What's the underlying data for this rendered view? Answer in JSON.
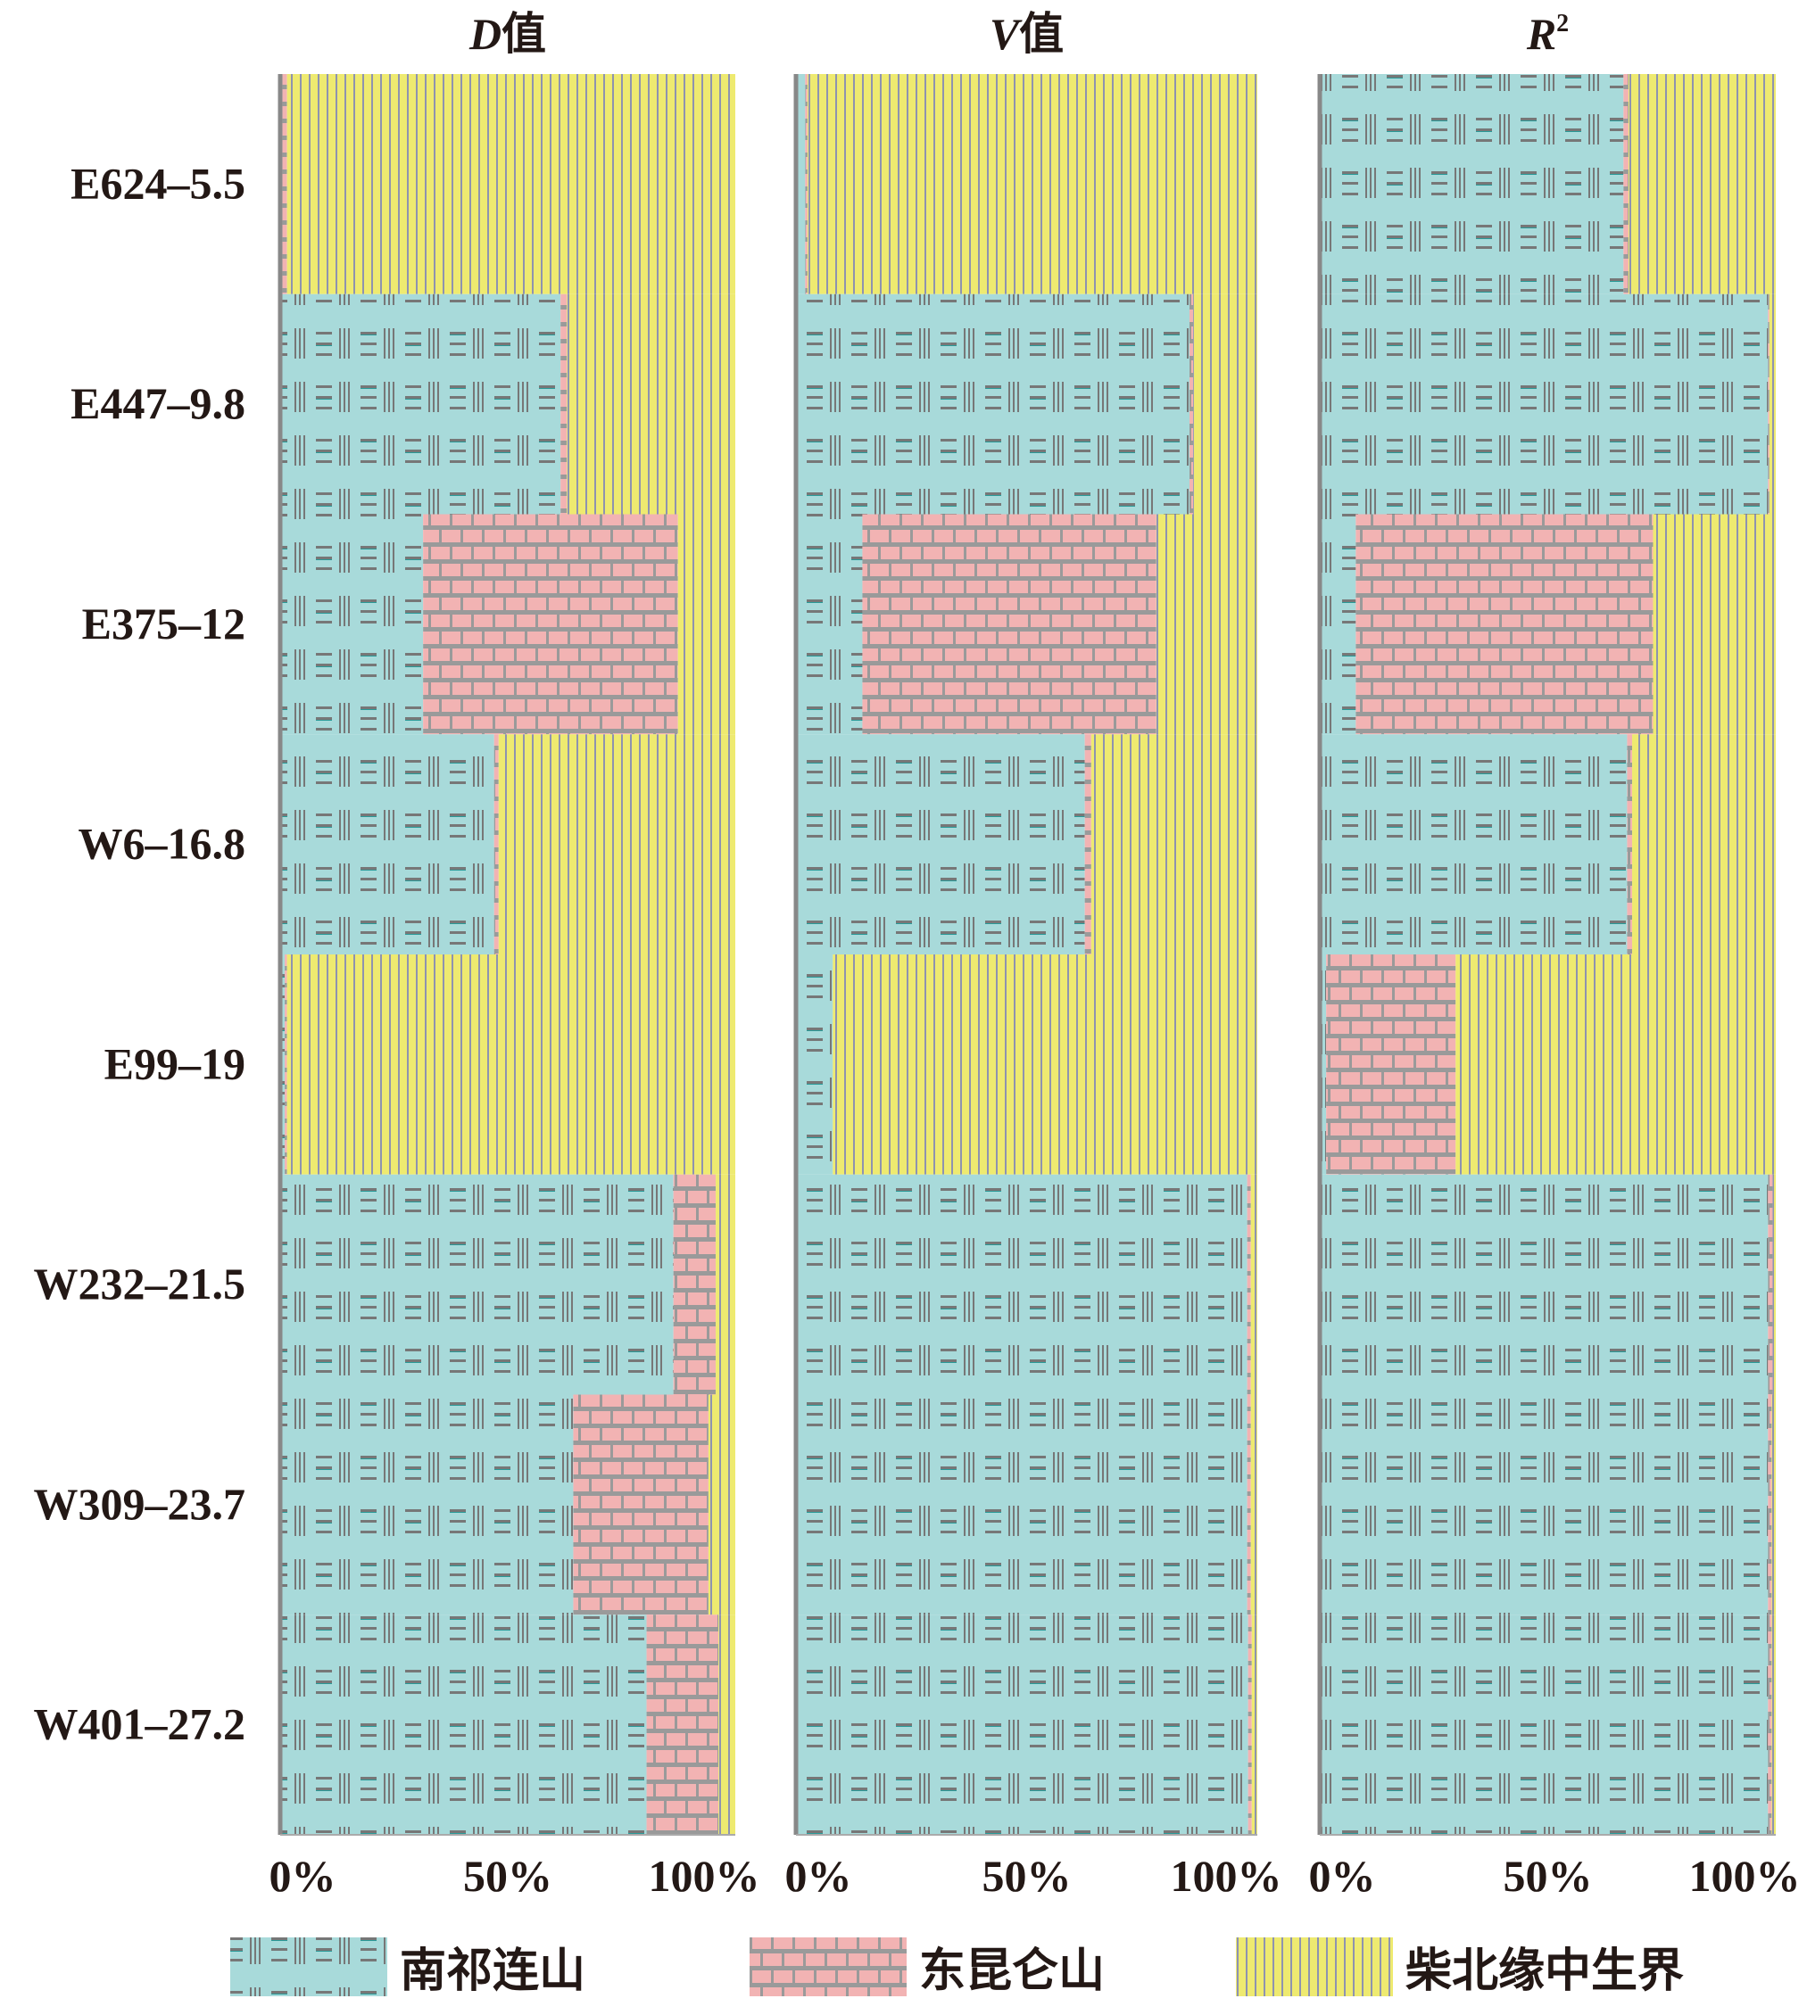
{
  "chart_data": {
    "type": "bar",
    "orientation": "horizontal-stacked-percent",
    "categories": [
      "E624-5.5",
      "E447-9.8",
      "E375-12",
      "W6-16.8",
      "E99-19",
      "W232-21.5",
      "W309-23.7",
      "W401-27.2"
    ],
    "xlim": [
      0,
      100
    ],
    "tick_labels": [
      "0%",
      "50%",
      "100%"
    ],
    "legend": {
      "placement": "bottom",
      "entries": [
        {
          "name": "南祁连山",
          "color": "#a8dada",
          "pattern": "lines-grid"
        },
        {
          "name": "东昆仑山",
          "color": "#f2b3b3",
          "pattern": "brick"
        },
        {
          "name": "柴北缘中生界",
          "color": "#eeea70",
          "pattern": "vertical-stripes"
        }
      ]
    },
    "panels": [
      {
        "title_italic": "D",
        "title_suffix": "值",
        "series": [
          {
            "name": "南祁连山",
            "values": [
              0.5,
              61.6,
              31.4,
              47.0,
              1.0,
              86.4,
              64.4,
              80.5
            ]
          },
          {
            "name": "东昆仑山",
            "values": [
              1.0,
              1.4,
              56.0,
              1.0,
              0.5,
              9.3,
              29.7,
              15.8
            ]
          },
          {
            "name": "柴北缘中生界",
            "values": [
              98.5,
              37.0,
              12.6,
              52.0,
              98.5,
              4.3,
              5.9,
              3.7
            ]
          }
        ]
      },
      {
        "title_italic": "V",
        "title_suffix": "值",
        "series": [
          {
            "name": "南祁连山",
            "values": [
              2.0,
              85.3,
              14.4,
              62.6,
              8.0,
              97.8,
              97.8,
              98.0
            ]
          },
          {
            "name": "东昆仑山",
            "values": [
              0.5,
              0.8,
              63.7,
              1.4,
              0.0,
              0.8,
              0.8,
              0.8
            ]
          },
          {
            "name": "柴北缘中生界",
            "values": [
              97.5,
              13.9,
              21.9,
              36.0,
              92.0,
              1.4,
              1.4,
              1.2
            ]
          }
        ]
      },
      {
        "title_italic": "R",
        "title_suffix": "2",
        "series": [
          {
            "name": "南祁连山",
            "values": [
              66.6,
              98.3,
              7.9,
              67.4,
              1.4,
              98.3,
              98.3,
              98.3
            ]
          },
          {
            "name": "东昆仑山",
            "values": [
              1.1,
              0.3,
              65.2,
              1.1,
              28.4,
              1.0,
              0.8,
              0.8
            ]
          },
          {
            "name": "柴北缘中生界",
            "values": [
              32.3,
              1.4,
              26.9,
              31.5,
              70.2,
              0.7,
              0.9,
              0.9
            ]
          }
        ]
      }
    ]
  }
}
